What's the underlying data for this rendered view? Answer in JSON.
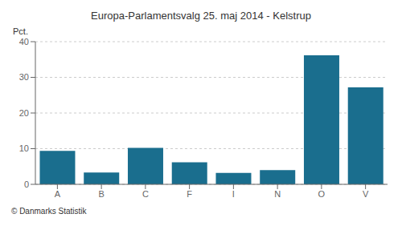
{
  "chart_data": {
    "type": "bar",
    "title": "Europa-Parlamentsvalg 25. maj 2014 - Kelstrup",
    "categories": [
      "A",
      "B",
      "C",
      "F",
      "I",
      "N",
      "O",
      "V"
    ],
    "values": [
      9.4,
      3.3,
      10.2,
      6.2,
      3.2,
      4.0,
      36.2,
      27.2
    ],
    "color": "#1a6e8e",
    "ylabel": "Pct.",
    "ylim": [
      0,
      40
    ],
    "yticks": [
      0,
      10,
      20,
      30,
      40
    ],
    "grid": true,
    "annotations": [
      "© Danmarks Statistik"
    ]
  }
}
